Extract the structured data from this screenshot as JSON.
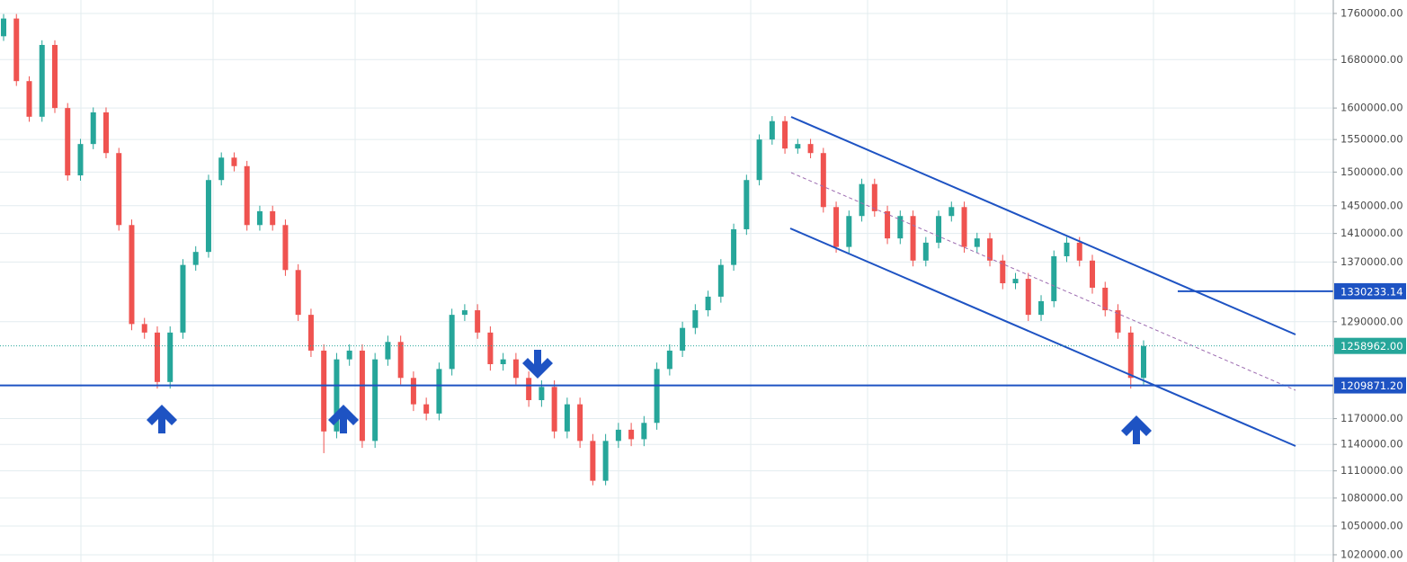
{
  "chart_data": {
    "type": "candlestick",
    "log_scale": true,
    "grid": true,
    "up_color": "#26a69a",
    "down_color": "#ef5350",
    "ylim": [
      1012600,
      1784000
    ],
    "yticks": [
      {
        "value": 1760000,
        "label": "1760000.00"
      },
      {
        "value": 1680000,
        "label": "1680000.00"
      },
      {
        "value": 1600000,
        "label": "1600000.00"
      },
      {
        "value": 1550000,
        "label": "1550000.00"
      },
      {
        "value": 1500000,
        "label": "1500000.00"
      },
      {
        "value": 1450000,
        "label": "1450000.00"
      },
      {
        "value": 1410000,
        "label": "1410000.00"
      },
      {
        "value": 1370000,
        "label": "1370000.00"
      },
      {
        "value": 1290000,
        "label": "1290000.00"
      },
      {
        "value": 1170000,
        "label": "1170000.00"
      },
      {
        "value": 1140000,
        "label": "1140000.00"
      },
      {
        "value": 1110000,
        "label": "1110000.00"
      },
      {
        "value": 1080000,
        "label": "1080000.00"
      },
      {
        "value": 1050000,
        "label": "1050000.00"
      },
      {
        "value": 1020000,
        "label": "1020000.00"
      }
    ],
    "price_lines": [
      {
        "value": 1330233.14,
        "label": "1330233.14",
        "color": "#1e53c3",
        "style": "solid"
      },
      {
        "value": 1209871.2,
        "label": "1209871.20",
        "color": "#1e53c3",
        "style": "solid"
      },
      {
        "value": 1258962,
        "label": "1258962.00",
        "color": "#26a69a",
        "style": "dotted"
      }
    ],
    "open": [
      1720000,
      1751000,
      1644000,
      1586000,
      1705000,
      1600000,
      1495000,
      1543000,
      1593000,
      1529000,
      1422000,
      1287000,
      1276000,
      1214000,
      1276000,
      1366000,
      1384000,
      1488000,
      1522000,
      1509000,
      1422000,
      1442000,
      1422000,
      1359000,
      1299000,
      1253000,
      1155000,
      1242000,
      1253000,
      1144000,
      1242000,
      1264000,
      1219000,
      1187000,
      1176000,
      1230000,
      1299000,
      1305000,
      1276000,
      1236000,
      1242000,
      1219000,
      1192000,
      1208000,
      1155000,
      1187000,
      1144000,
      1099000,
      1144000,
      1157000,
      1146000,
      1165000,
      1230000,
      1253000,
      1282000,
      1305000,
      1323000,
      1366000,
      1416000,
      1488000,
      1550000,
      1579000,
      1536000,
      1543000,
      1529000,
      1448000,
      1391000,
      1435000,
      1482000,
      1442000,
      1403000,
      1435000,
      1372000,
      1397000,
      1435000,
      1448000,
      1391000,
      1403000,
      1372000,
      1341000,
      1347000,
      1299000,
      1317000,
      1378000,
      1397000,
      1372000,
      1335000,
      1305000,
      1276000,
      1219000
    ],
    "high": [
      1759000,
      1759000,
      1652000,
      1713000,
      1713000,
      1608000,
      1551000,
      1601000,
      1601000,
      1537000,
      1430000,
      1295000,
      1284000,
      1284000,
      1374000,
      1392000,
      1496000,
      1530000,
      1530000,
      1517000,
      1450000,
      1450000,
      1430000,
      1367000,
      1307000,
      1261000,
      1250000,
      1261000,
      1261000,
      1250000,
      1272000,
      1272000,
      1227000,
      1195000,
      1238000,
      1307000,
      1313000,
      1313000,
      1284000,
      1250000,
      1250000,
      1227000,
      1216000,
      1216000,
      1195000,
      1195000,
      1152000,
      1152000,
      1165000,
      1165000,
      1173000,
      1238000,
      1261000,
      1290000,
      1313000,
      1331000,
      1374000,
      1424000,
      1496000,
      1558000,
      1587000,
      1587000,
      1551000,
      1551000,
      1537000,
      1456000,
      1443000,
      1490000,
      1490000,
      1450000,
      1443000,
      1443000,
      1405000,
      1443000,
      1456000,
      1456000,
      1411000,
      1411000,
      1380000,
      1355000,
      1355000,
      1325000,
      1386000,
      1405000,
      1405000,
      1380000,
      1343000,
      1313000,
      1284000,
      1266000
    ],
    "low": [
      1712000,
      1636000,
      1578000,
      1578000,
      1592000,
      1487000,
      1487000,
      1535000,
      1521000,
      1414000,
      1279000,
      1268000,
      1206000,
      1206000,
      1268000,
      1358000,
      1376000,
      1480000,
      1501000,
      1414000,
      1414000,
      1414000,
      1351000,
      1291000,
      1245000,
      1130000,
      1147000,
      1234000,
      1136000,
      1136000,
      1234000,
      1211000,
      1179000,
      1168000,
      1168000,
      1222000,
      1291000,
      1268000,
      1228000,
      1228000,
      1211000,
      1184000,
      1184000,
      1147000,
      1147000,
      1136000,
      1094000,
      1094000,
      1136000,
      1138000,
      1138000,
      1157000,
      1222000,
      1245000,
      1274000,
      1297000,
      1315000,
      1358000,
      1408000,
      1480000,
      1542000,
      1528000,
      1528000,
      1521000,
      1440000,
      1383000,
      1383000,
      1427000,
      1434000,
      1395000,
      1395000,
      1364000,
      1364000,
      1389000,
      1427000,
      1383000,
      1383000,
      1364000,
      1333000,
      1333000,
      1291000,
      1291000,
      1309000,
      1370000,
      1364000,
      1327000,
      1297000,
      1268000,
      1206000,
      1211000
    ],
    "close": [
      1751000,
      1644000,
      1586000,
      1705000,
      1600000,
      1495000,
      1543000,
      1593000,
      1529000,
      1422000,
      1287000,
      1276000,
      1214000,
      1276000,
      1366000,
      1384000,
      1488000,
      1522000,
      1509000,
      1422000,
      1442000,
      1422000,
      1359000,
      1299000,
      1253000,
      1155000,
      1242000,
      1253000,
      1144000,
      1242000,
      1264000,
      1219000,
      1187000,
      1176000,
      1230000,
      1299000,
      1305000,
      1276000,
      1236000,
      1242000,
      1219000,
      1192000,
      1208000,
      1155000,
      1187000,
      1144000,
      1099000,
      1144000,
      1157000,
      1146000,
      1165000,
      1230000,
      1253000,
      1282000,
      1305000,
      1323000,
      1366000,
      1416000,
      1488000,
      1550000,
      1579000,
      1536000,
      1543000,
      1529000,
      1448000,
      1391000,
      1435000,
      1482000,
      1442000,
      1403000,
      1435000,
      1372000,
      1397000,
      1435000,
      1448000,
      1391000,
      1403000,
      1372000,
      1341000,
      1347000,
      1299000,
      1317000,
      1378000,
      1397000,
      1372000,
      1335000,
      1305000,
      1276000,
      1219000,
      1258962
    ]
  }
}
